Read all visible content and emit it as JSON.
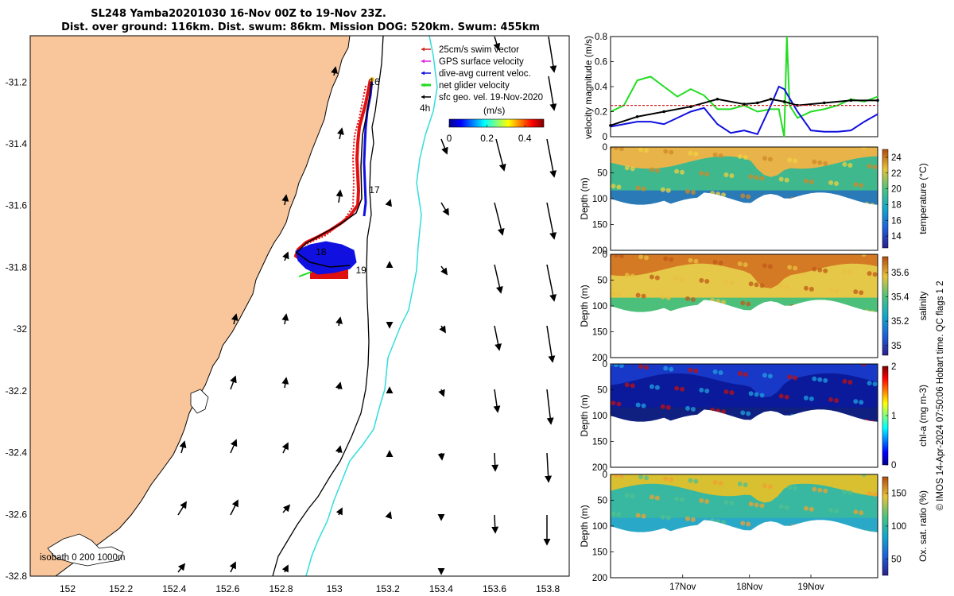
{
  "header": {
    "title_line1": "SL248 Yamba20201030 16-Nov 00Z to 19-Nov 23Z.",
    "title_line2": "Dist. over ground: 116km. Dist. swum: 86km. Mission DOG: 520km. Swum: 455km"
  },
  "colors": {
    "land": "#f9c69c",
    "track_red": "#e01010",
    "track_blue": "#1010e0",
    "isobath_200": "#000000",
    "isobath_1000": "#33dddd",
    "swim_vector": "#d02020",
    "gps_velocity": "#e020e0",
    "dive_avg": "#1010e0",
    "net_velocity": "#22dd22",
    "sfc_geo": "#000000"
  },
  "map": {
    "xticks": [
      "152",
      "152.2",
      "152.4",
      "152.6",
      "152.8",
      "153",
      "153.2",
      "153.4",
      "153.6",
      "153.8"
    ],
    "yticks": [
      "-31.2",
      "-31.4",
      "-31.6",
      "-31.8",
      "-32",
      "-32.2",
      "-32.4",
      "-32.6",
      "-32.8"
    ],
    "xlim": [
      151.86,
      153.88
    ],
    "ylim": [
      -32.8,
      -31.05
    ],
    "isobath_label": "isobath 0   200   1000m",
    "day_labels": [
      {
        "text": "16",
        "lon": 153.13,
        "lat": -31.21
      },
      {
        "text": "17",
        "lon": 153.13,
        "lat": -31.56
      },
      {
        "text": "18",
        "lon": 152.93,
        "lat": -31.76
      },
      {
        "text": "19",
        "lon": 153.08,
        "lat": -31.82
      }
    ],
    "vector_scale_label": "4h",
    "legend": [
      {
        "label": "25cm/s swim vector",
        "color": "#d02020"
      },
      {
        "label": "GPS surface velocity",
        "color": "#e020e0"
      },
      {
        "label": "dive-avg current veloc.",
        "color": "#1010e0"
      },
      {
        "label": "net glider velocity",
        "color": "#22dd22"
      },
      {
        "label": "sfc geo. vel. 19-Nov-2020",
        "color": "#000000"
      }
    ],
    "colorbar": {
      "title": "(m/s)",
      "ticks": [
        "0",
        "0.2",
        "0.4"
      ],
      "range": [
        0,
        0.5
      ]
    }
  },
  "chart_data": [
    {
      "type": "line",
      "title": "",
      "xlabel": "",
      "ylabel": "velocity magnitude (m/s)",
      "xlim": [
        0,
        1
      ],
      "ylim": [
        0,
        0.8
      ],
      "yticks": [
        "0",
        "0.2",
        "0.4",
        "0.6",
        "0.8"
      ],
      "series": [
        {
          "color": "#22dd22",
          "x": [
            0,
            0.05,
            0.1,
            0.15,
            0.2,
            0.25,
            0.3,
            0.35,
            0.4,
            0.45,
            0.5,
            0.55,
            0.6,
            0.63,
            0.65,
            0.66,
            0.67,
            0.7,
            0.75,
            0.8,
            0.85,
            0.9,
            0.95,
            1.0
          ],
          "y": [
            0.2,
            0.25,
            0.45,
            0.48,
            0.4,
            0.32,
            0.38,
            0.33,
            0.22,
            0.22,
            0.25,
            0.2,
            0.22,
            0.22,
            0.0,
            0.8,
            0.25,
            0.15,
            0.2,
            0.22,
            0.25,
            0.3,
            0.28,
            0.32
          ]
        },
        {
          "color": "#1010e0",
          "x": [
            0,
            0.05,
            0.1,
            0.15,
            0.2,
            0.25,
            0.3,
            0.35,
            0.4,
            0.45,
            0.5,
            0.55,
            0.6,
            0.63,
            0.65,
            0.7,
            0.75,
            0.8,
            0.85,
            0.9,
            0.95,
            1.0
          ],
          "y": [
            0.08,
            0.1,
            0.12,
            0.12,
            0.1,
            0.15,
            0.2,
            0.23,
            0.1,
            0.03,
            0.05,
            0.02,
            0.25,
            0.4,
            0.38,
            0.2,
            0.05,
            0.04,
            0.04,
            0.05,
            0.12,
            0.18
          ]
        },
        {
          "color": "#000000",
          "x": [
            0,
            0.1,
            0.2,
            0.3,
            0.4,
            0.5,
            0.55,
            0.6,
            0.65,
            0.7,
            0.8,
            0.9,
            1.0
          ],
          "y": [
            0.09,
            0.16,
            0.2,
            0.24,
            0.3,
            0.26,
            0.27,
            0.3,
            0.28,
            0.25,
            0.27,
            0.29,
            0.29
          ]
        },
        {
          "color": "#d02020",
          "x": [
            0,
            1
          ],
          "y": [
            0.25,
            0.25
          ]
        }
      ]
    },
    {
      "type": "heatmap",
      "ylabel": "Depth (m)",
      "colorbar_label": "temperature (°C)",
      "yticks": [
        "0",
        "50",
        "100",
        "150",
        "200"
      ],
      "ylim": [
        0,
        200
      ],
      "cbar_ticks": [
        "14",
        "16",
        "18",
        "20",
        "22",
        "24"
      ],
      "cbar_range": [
        12.5,
        25
      ]
    },
    {
      "type": "heatmap",
      "ylabel": "Depth (m)",
      "colorbar_label": "salinity",
      "yticks": [
        "0",
        "50",
        "100",
        "150",
        "200"
      ],
      "ylim": [
        0,
        200
      ],
      "cbar_ticks": [
        "35",
        "35.2",
        "35.4",
        "35.6"
      ],
      "cbar_range": [
        34.92,
        35.73
      ]
    },
    {
      "type": "heatmap",
      "ylabel": "Depth (m)",
      "colorbar_label": "chl-a (mg m-3)",
      "yticks": [
        "0",
        "50",
        "100",
        "150",
        "200"
      ],
      "ylim": [
        0,
        200
      ],
      "cbar_ticks": [
        "0",
        "1",
        "2"
      ],
      "cbar_range": [
        0,
        2
      ]
    },
    {
      "type": "heatmap",
      "ylabel": "Depth (m)",
      "colorbar_label": "Ox. sat. ratio (%)",
      "yticks": [
        "0",
        "50",
        "100",
        "150",
        "200"
      ],
      "ylim": [
        0,
        200
      ],
      "cbar_ticks": [
        "50",
        "100",
        "150"
      ],
      "cbar_range": [
        25,
        175
      ],
      "xticks": [
        "17Nov",
        "18Nov",
        "19Nov"
      ]
    }
  ],
  "footer": {
    "side_note": "© IMOS 14-Apr-2024 07:50:06 Hobart time. QC flags 1  2"
  }
}
